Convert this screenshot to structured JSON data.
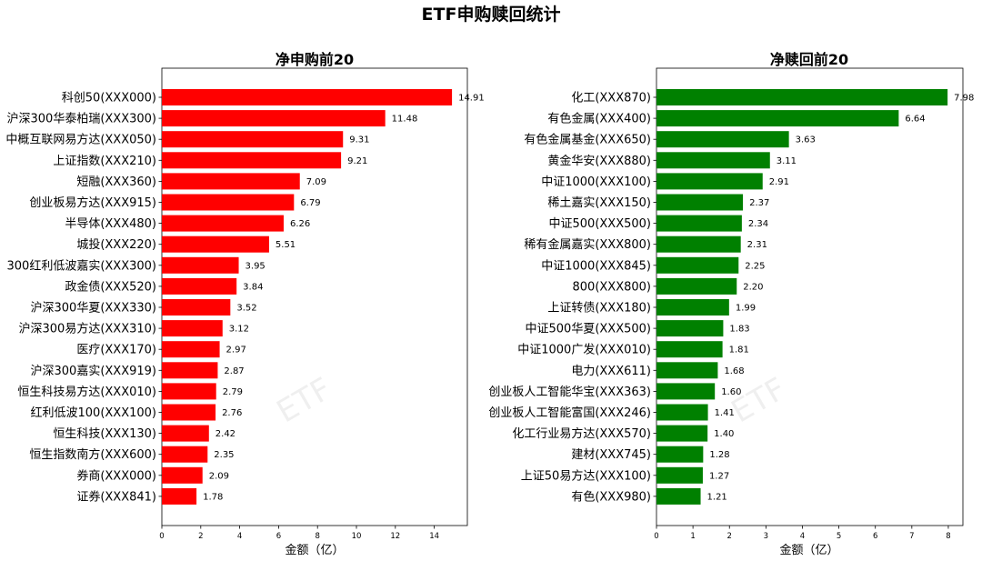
{
  "suptitle": "ETF申购赎回统计",
  "watermark": "ETF",
  "chart_data": [
    {
      "type": "bar",
      "orientation": "horizontal",
      "title": "净申购前20",
      "xlabel": "金额（亿）",
      "ylabel": "",
      "color": "#ff0000",
      "xlim": [
        0,
        15.7
      ],
      "xticks": [
        0,
        2,
        4,
        6,
        8,
        10,
        12,
        14
      ],
      "categories": [
        "科创50(XXX000)",
        "沪深300华泰柏瑞(XXX300)",
        "中概互联网易方达(XXX050)",
        "上证指数(XXX210)",
        "短融(XXX360)",
        "创业板易方达(XXX915)",
        "半导体(XXX480)",
        "城投(XXX220)",
        "300红利低波嘉实(XXX300)",
        "政金债(XXX520)",
        "沪深300华夏(XXX330)",
        "沪深300易方达(XXX310)",
        "医疗(XXX170)",
        "沪深300嘉实(XXX919)",
        "恒生科技易方达(XXX010)",
        "红利低波100(XXX100)",
        "恒生科技(XXX130)",
        "恒生指数南方(XXX600)",
        "券商(XXX000)",
        "证券(XXX841)"
      ],
      "values": [
        14.91,
        11.48,
        9.31,
        9.21,
        7.09,
        6.79,
        6.26,
        5.51,
        3.95,
        3.84,
        3.52,
        3.12,
        2.97,
        2.87,
        2.79,
        2.76,
        2.42,
        2.35,
        2.09,
        1.78
      ],
      "labels": [
        "14.91",
        "11.48",
        "9.31",
        "9.21",
        "7.09",
        "6.79",
        "6.26",
        "5.51",
        "3.95",
        "3.84",
        "3.52",
        "3.12",
        "2.97",
        "2.87",
        "2.79",
        "2.76",
        "2.42",
        "2.35",
        "2.09",
        "1.78"
      ]
    },
    {
      "type": "bar",
      "orientation": "horizontal",
      "title": "净赎回前20",
      "xlabel": "金额（亿）",
      "ylabel": "",
      "color": "#008000",
      "xlim": [
        0,
        8.4
      ],
      "xticks": [
        0,
        1,
        2,
        3,
        4,
        5,
        6,
        7,
        8
      ],
      "categories": [
        "化工(XXX870)",
        "有色金属(XXX400)",
        "有色金属基金(XXX650)",
        "黄金华安(XXX880)",
        "中证1000(XXX100)",
        "稀土嘉实(XXX150)",
        "中证500(XXX500)",
        "稀有金属嘉实(XXX800)",
        "中证1000(XXX845)",
        "800(XXX800)",
        "上证转债(XXX180)",
        "中证500华夏(XXX500)",
        "中证1000广发(XXX010)",
        "电力(XXX611)",
        "创业板人工智能华宝(XXX363)",
        "创业板人工智能富国(XXX246)",
        "化工行业易方达(XXX570)",
        "建材(XXX745)",
        "上证50易方达(XXX100)",
        "有色(XXX980)"
      ],
      "values": [
        7.98,
        6.64,
        3.63,
        3.11,
        2.91,
        2.37,
        2.34,
        2.31,
        2.25,
        2.2,
        1.99,
        1.83,
        1.81,
        1.68,
        1.6,
        1.41,
        1.4,
        1.28,
        1.27,
        1.21
      ],
      "labels": [
        "7.98",
        "6.64",
        "3.63",
        "3.11",
        "2.91",
        "2.37",
        "2.34",
        "2.31",
        "2.25",
        "2.20",
        "1.99",
        "1.83",
        "1.81",
        "1.68",
        "1.60",
        "1.41",
        "1.40",
        "1.28",
        "1.27",
        "1.21"
      ]
    }
  ]
}
